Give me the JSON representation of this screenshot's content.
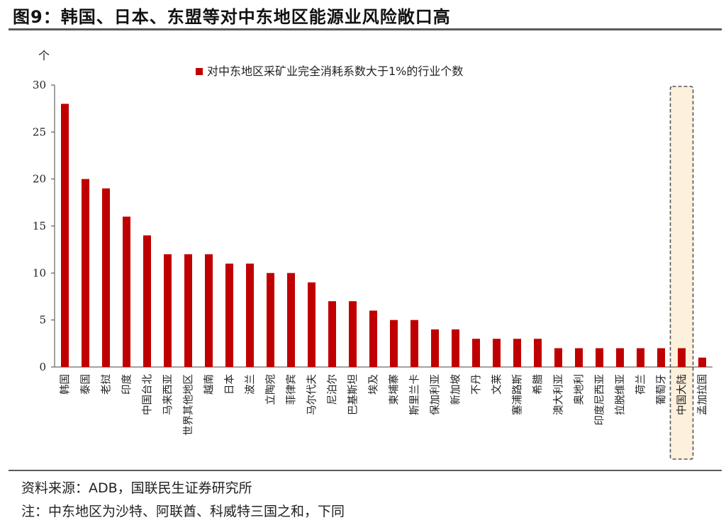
{
  "figure": {
    "title": "图9：韩国、日本、东盟等对中东地区能源业风险敞口高"
  },
  "notes": {
    "source": "资料来源：ADB，国联民生证券研究所",
    "note": "注：中东地区为沙特、阿联酋、科威特三国之和，下同"
  },
  "colors": {
    "bar": "#c00000",
    "highlight_fill": "#fdf0dc",
    "highlight_border": "#555555",
    "axis": "#444444"
  },
  "chart_data": {
    "type": "bar",
    "unit_label": "个",
    "ylim": [
      0,
      30
    ],
    "yticks": [
      0,
      5,
      10,
      15,
      20,
      25,
      30
    ],
    "grid": false,
    "legend_position": "top-center",
    "categories": [
      "韩国",
      "泰国",
      "老挝",
      "印度",
      "中国台北",
      "马来西亚",
      "世界其他地区",
      "越南",
      "日本",
      "波兰",
      "立陶宛",
      "菲律宾",
      "马尔代夫",
      "尼泊尔",
      "巴基斯坦",
      "埃及",
      "柬埔寨",
      "斯里兰卡",
      "保加利亚",
      "新加坡",
      "不丹",
      "文莱",
      "塞浦路斯",
      "希腊",
      "澳大利亚",
      "奥地利",
      "印度尼西亚",
      "拉脱维亚",
      "荷兰",
      "葡萄牙",
      "中国大陆",
      "孟加拉国"
    ],
    "series": [
      {
        "name": "对中东地区采矿业完全消耗系数大于1%的行业个数",
        "values": [
          28,
          20,
          19,
          16,
          14,
          12,
          12,
          12,
          11,
          11,
          10,
          10,
          9,
          7,
          7,
          6,
          5,
          5,
          4,
          4,
          3,
          3,
          3,
          3,
          2,
          2,
          2,
          2,
          2,
          2,
          2,
          1
        ]
      }
    ],
    "highlight_category": "中国大陆"
  }
}
